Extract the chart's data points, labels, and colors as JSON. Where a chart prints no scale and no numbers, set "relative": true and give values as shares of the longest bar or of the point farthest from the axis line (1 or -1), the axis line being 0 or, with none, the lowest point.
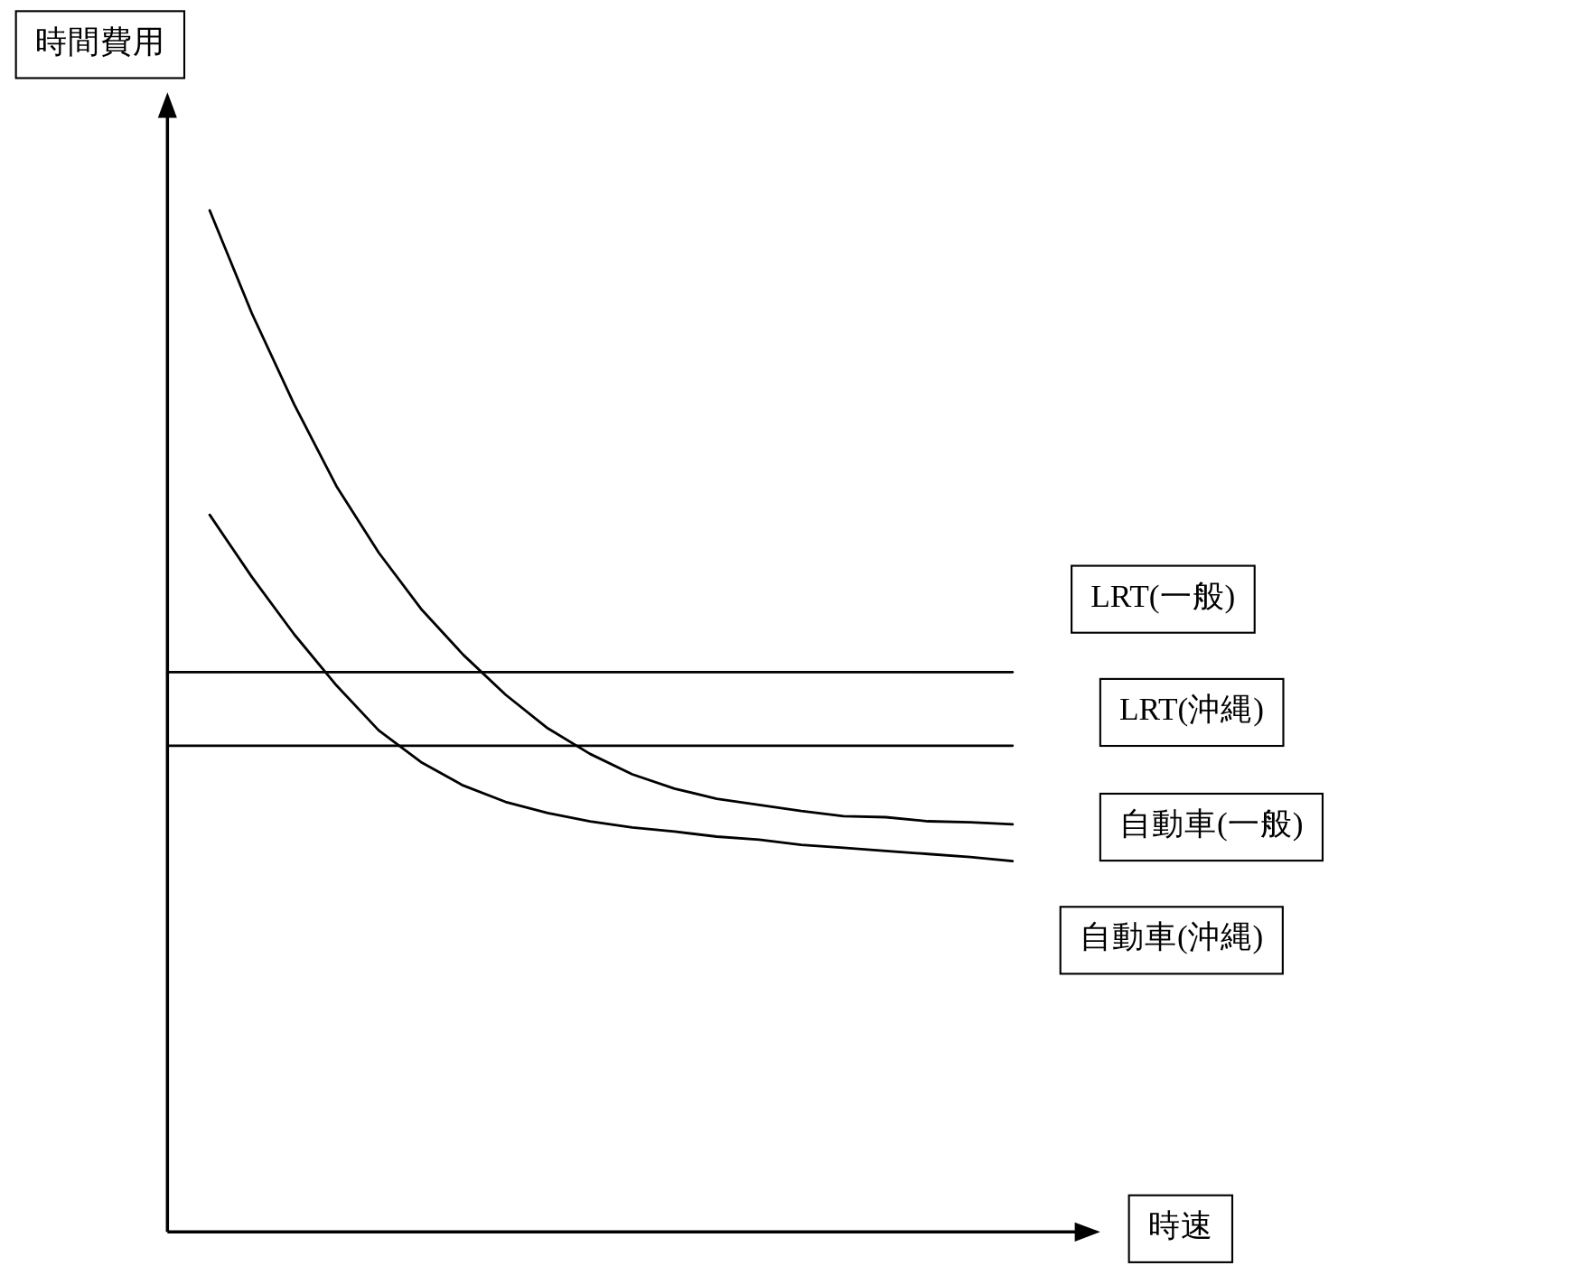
{
  "chart_data": {
    "type": "line",
    "relative": true,
    "ylabel": "時間費用",
    "xlabel": "時速",
    "categories": [
      null,
      null,
      null,
      null,
      null,
      null,
      null,
      null,
      null,
      null,
      null,
      null,
      null,
      null,
      null,
      null,
      null,
      null,
      null,
      null,
      null
    ],
    "series": [
      {
        "name": "LRT(一般)",
        "color": "#000000",
        "values": [
          0.548,
          0.548,
          0.548,
          0.548,
          0.548,
          0.548,
          0.548,
          0.548,
          0.548,
          0.548,
          0.548,
          0.548,
          0.548,
          0.548,
          0.548,
          0.548,
          0.548,
          0.548,
          0.548,
          0.548,
          0.548
        ]
      },
      {
        "name": "LRT(沖縄)",
        "color": "#000000",
        "values": [
          0.476,
          0.476,
          0.476,
          0.476,
          0.476,
          0.476,
          0.476,
          0.476,
          0.476,
          0.476,
          0.476,
          0.476,
          0.476,
          0.476,
          0.476,
          0.476,
          0.476,
          0.476,
          0.476,
          0.476,
          0.476
        ]
      },
      {
        "name": "自動車(一般)",
        "color": "#000000",
        "values": [
          null,
          1.0,
          0.899,
          0.81,
          0.73,
          0.665,
          0.61,
          0.565,
          0.526,
          0.493,
          0.468,
          0.448,
          0.434,
          0.424,
          0.418,
          0.412,
          0.407,
          0.406,
          0.402,
          0.401,
          0.399
        ]
      },
      {
        "name": "自動車(沖縄)",
        "color": "#000000",
        "values": [
          null,
          0.702,
          0.641,
          0.585,
          0.535,
          0.491,
          0.46,
          0.437,
          0.421,
          0.41,
          0.402,
          0.396,
          0.392,
          0.387,
          0.384,
          0.379,
          0.376,
          0.373,
          0.37,
          0.367,
          0.363
        ]
      }
    ]
  }
}
